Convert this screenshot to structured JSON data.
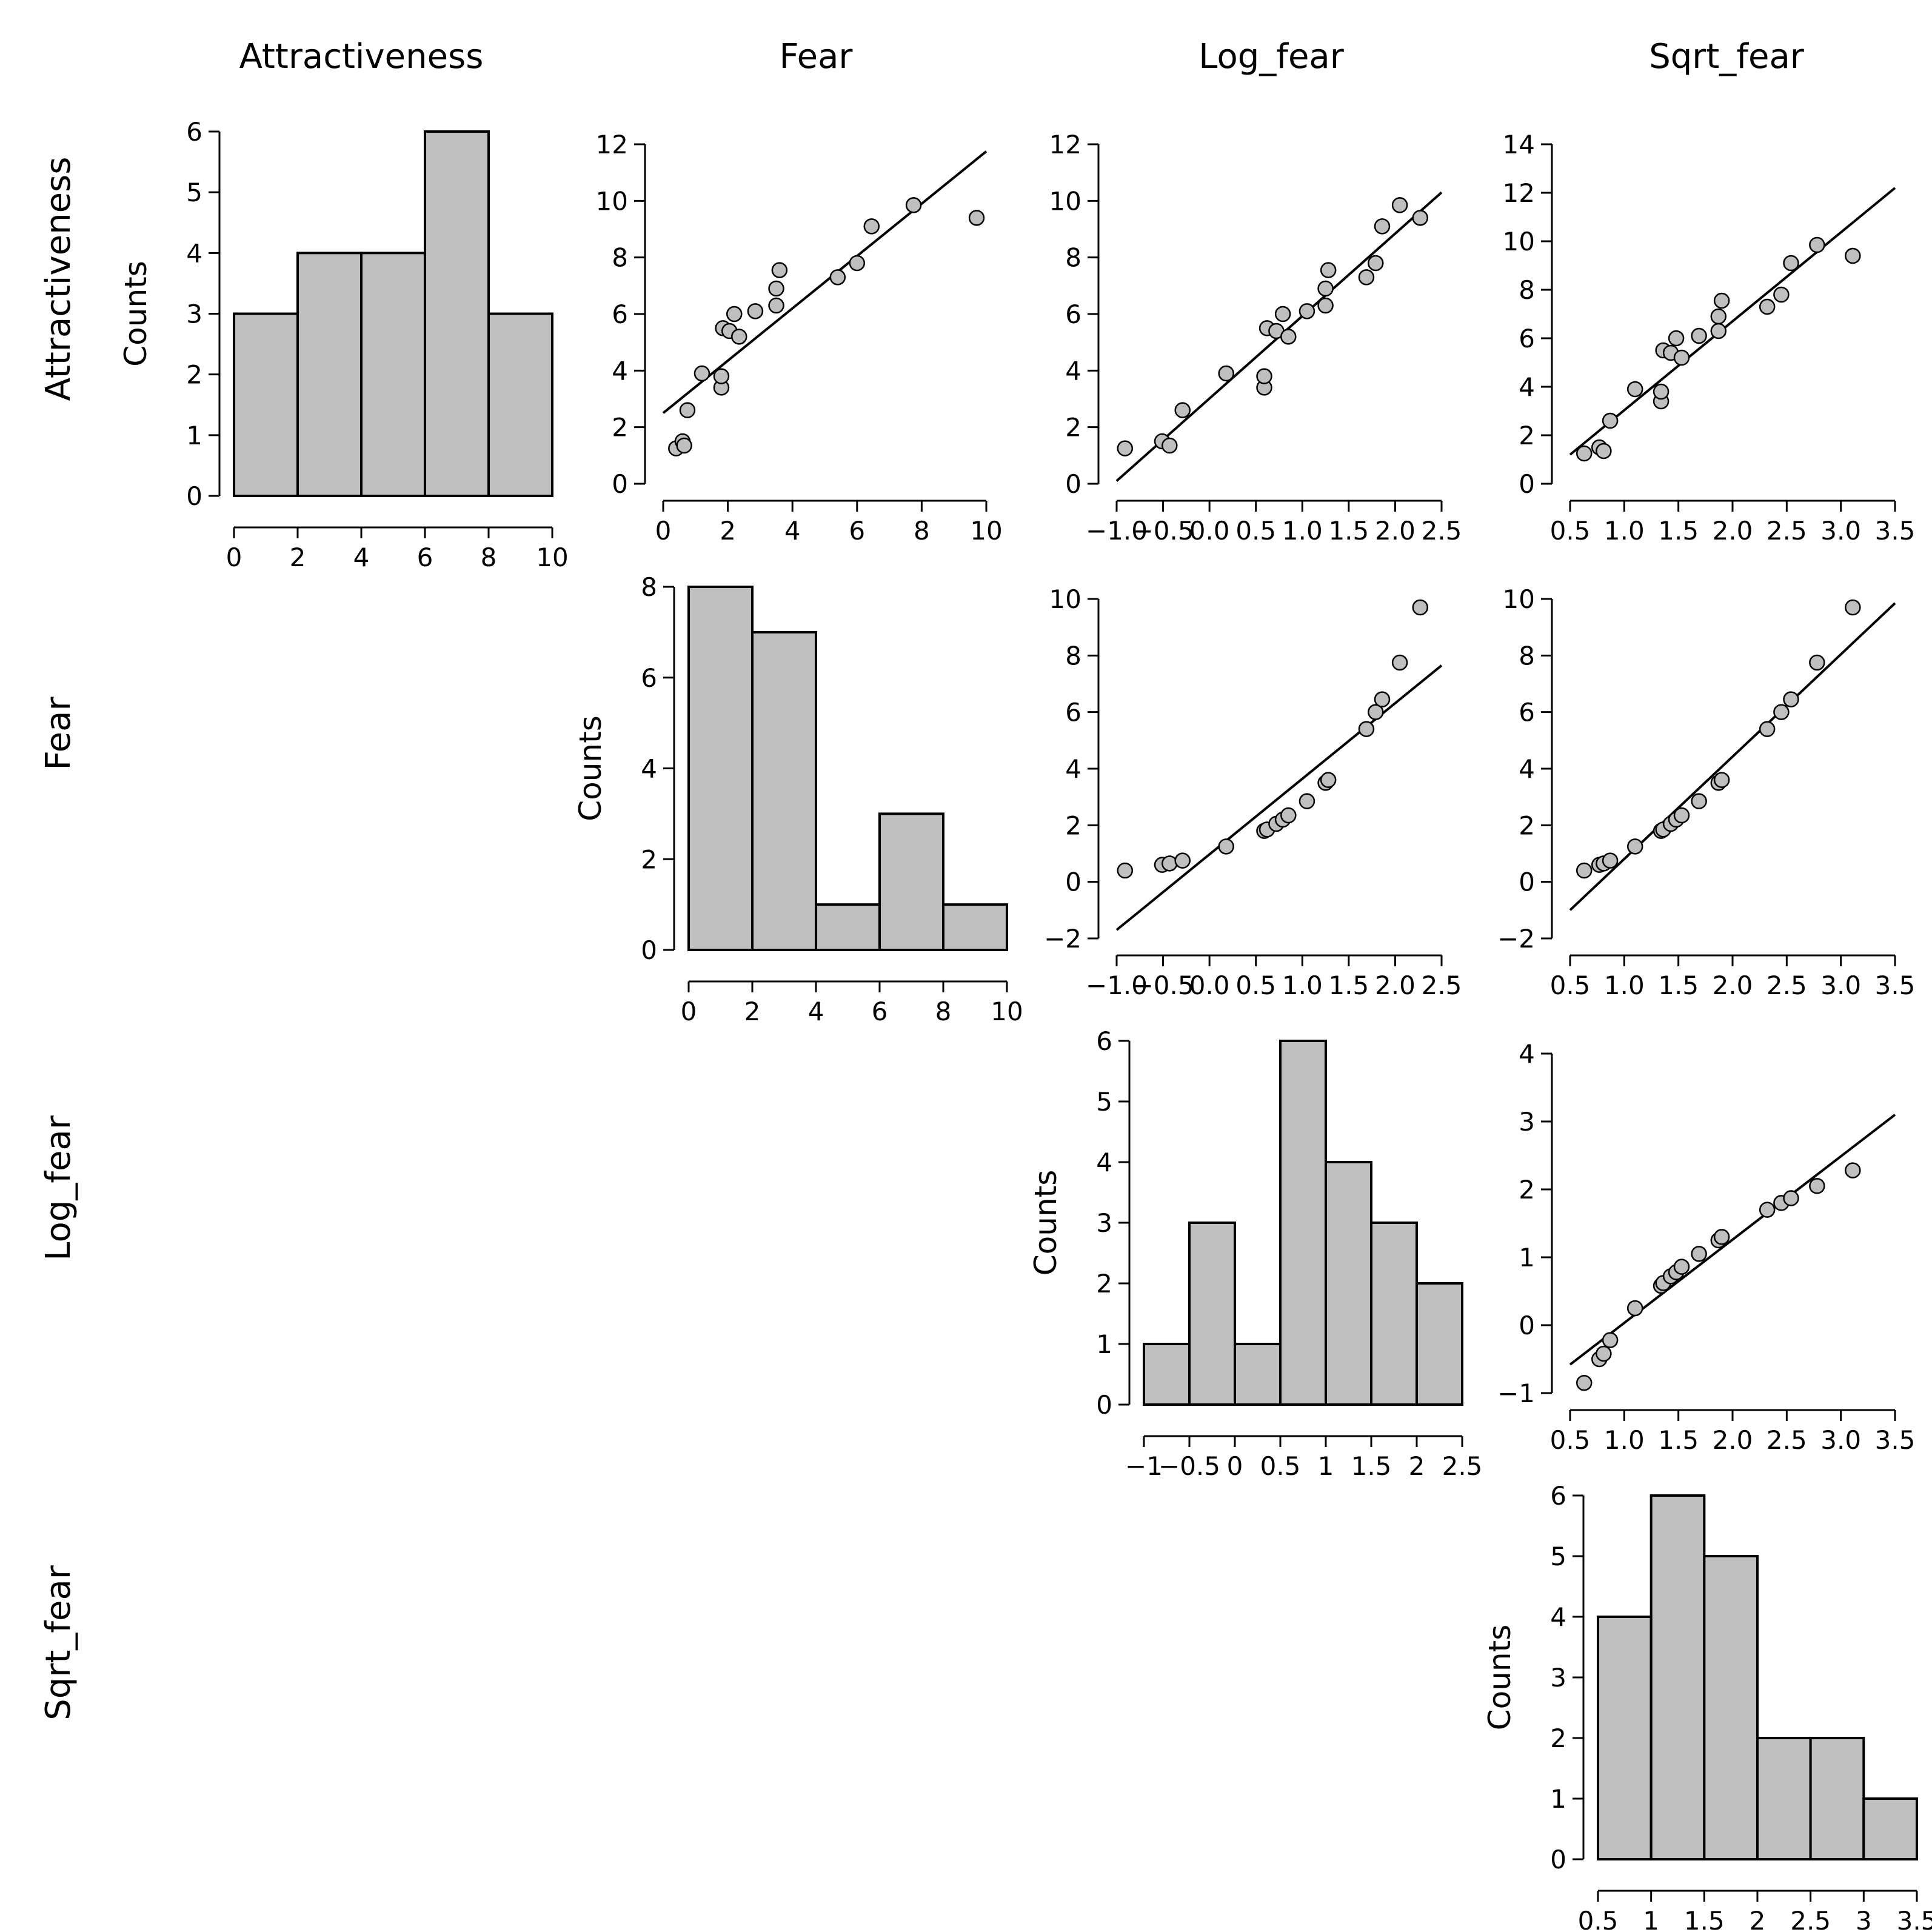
{
  "colors": {
    "bar_fill": "#bfbfbf",
    "point_fill": "#bfbfbf",
    "stroke": "#000000"
  },
  "columns": [
    "Attractiveness",
    "Fear",
    "Log_fear",
    "Sqrt_fear"
  ],
  "rows": [
    "Attractiveness",
    "Fear",
    "Log_fear",
    "Sqrt_fear"
  ],
  "chart_data": [
    {
      "type": "bar",
      "panel": "hist-attractiveness",
      "ylabel": "Counts",
      "bins": [
        [
          0,
          2
        ],
        [
          2,
          4
        ],
        [
          4,
          6
        ],
        [
          6,
          8
        ],
        [
          8,
          10
        ]
      ],
      "counts": [
        3,
        4,
        4,
        6,
        3
      ],
      "xlim": [
        0,
        10
      ],
      "ylim": [
        0,
        6
      ],
      "xticks": [
        0,
        2,
        4,
        6,
        8,
        10
      ],
      "xtick_labels": [
        "0",
        "2",
        "4",
        "6",
        "8",
        "10"
      ],
      "yticks": [
        0,
        1,
        2,
        3,
        4,
        5,
        6
      ],
      "ytick_labels": [
        "0",
        "1",
        "2",
        "3",
        "4",
        "5",
        "6"
      ]
    },
    {
      "type": "scatter",
      "panel": "scatter-fear-attractiveness",
      "points": [
        [
          0.4,
          1.25
        ],
        [
          0.6,
          1.5
        ],
        [
          0.65,
          1.35
        ],
        [
          0.75,
          2.6
        ],
        [
          1.2,
          3.9
        ],
        [
          1.8,
          3.4
        ],
        [
          1.8,
          3.8
        ],
        [
          1.85,
          5.5
        ],
        [
          2.05,
          5.4
        ],
        [
          2.2,
          6.0
        ],
        [
          2.35,
          5.2
        ],
        [
          2.85,
          6.1
        ],
        [
          3.5,
          6.9
        ],
        [
          3.5,
          6.3
        ],
        [
          3.6,
          7.55
        ],
        [
          5.4,
          7.3
        ],
        [
          6.0,
          7.8
        ],
        [
          6.45,
          9.1
        ],
        [
          7.75,
          9.85
        ],
        [
          9.7,
          9.4
        ]
      ],
      "fit": [
        [
          0,
          2.5
        ],
        [
          10,
          11.75
        ]
      ],
      "xlim": [
        0,
        10
      ],
      "ylim": [
        0,
        12
      ],
      "xticks": [
        0,
        2,
        4,
        6,
        8,
        10
      ],
      "xtick_labels": [
        "0",
        "2",
        "4",
        "6",
        "8",
        "10"
      ],
      "yticks": [
        0,
        2,
        4,
        6,
        8,
        10,
        12
      ],
      "ytick_labels": [
        "0",
        "2",
        "4",
        "6",
        "8",
        "10",
        "12"
      ]
    },
    {
      "type": "scatter",
      "panel": "scatter-logfear-attractiveness",
      "points": [
        [
          -0.91,
          1.25
        ],
        [
          -0.51,
          1.5
        ],
        [
          -0.43,
          1.35
        ],
        [
          -0.29,
          2.6
        ],
        [
          0.18,
          3.9
        ],
        [
          0.59,
          3.4
        ],
        [
          0.59,
          3.8
        ],
        [
          0.62,
          5.5
        ],
        [
          0.72,
          5.4
        ],
        [
          0.79,
          6.0
        ],
        [
          0.85,
          5.2
        ],
        [
          1.05,
          6.1
        ],
        [
          1.25,
          6.9
        ],
        [
          1.25,
          6.3
        ],
        [
          1.28,
          7.55
        ],
        [
          1.69,
          7.3
        ],
        [
          1.79,
          7.8
        ],
        [
          1.86,
          9.1
        ],
        [
          2.05,
          9.85
        ],
        [
          2.27,
          9.4
        ]
      ],
      "fit": [
        [
          -1.0,
          0.1
        ],
        [
          2.5,
          10.3
        ]
      ],
      "xlim": [
        -1.0,
        2.5
      ],
      "ylim": [
        0,
        12
      ],
      "xticks": [
        -1.0,
        -0.5,
        0.0,
        0.5,
        1.0,
        1.5,
        2.0,
        2.5
      ],
      "xtick_labels": [
        "−1.0",
        "−0.5",
        "0.0",
        "0.5",
        "1.0",
        "1.5",
        "2.0",
        "2.5"
      ],
      "yticks": [
        0,
        2,
        4,
        6,
        8,
        10,
        12
      ],
      "ytick_labels": [
        "0",
        "2",
        "4",
        "6",
        "8",
        "10",
        "12"
      ]
    },
    {
      "type": "scatter",
      "panel": "scatter-sqrtfear-attractiveness",
      "points": [
        [
          0.63,
          1.25
        ],
        [
          0.77,
          1.5
        ],
        [
          0.81,
          1.35
        ],
        [
          0.87,
          2.6
        ],
        [
          1.1,
          3.9
        ],
        [
          1.34,
          3.4
        ],
        [
          1.34,
          3.8
        ],
        [
          1.36,
          5.5
        ],
        [
          1.43,
          5.4
        ],
        [
          1.48,
          6.0
        ],
        [
          1.53,
          5.2
        ],
        [
          1.69,
          6.1
        ],
        [
          1.87,
          6.9
        ],
        [
          1.87,
          6.3
        ],
        [
          1.9,
          7.55
        ],
        [
          2.32,
          7.3
        ],
        [
          2.45,
          7.8
        ],
        [
          2.54,
          9.1
        ],
        [
          2.78,
          9.85
        ],
        [
          3.11,
          9.4
        ]
      ],
      "fit": [
        [
          0.5,
          1.2
        ],
        [
          3.5,
          12.2
        ]
      ],
      "xlim": [
        0.5,
        3.5
      ],
      "ylim": [
        0,
        14
      ],
      "xticks": [
        0.5,
        1.0,
        1.5,
        2.0,
        2.5,
        3.0,
        3.5
      ],
      "xtick_labels": [
        "0.5",
        "1.0",
        "1.5",
        "2.0",
        "2.5",
        "3.0",
        "3.5"
      ],
      "yticks": [
        0,
        2,
        4,
        6,
        8,
        10,
        12,
        14
      ],
      "ytick_labels": [
        "0",
        "2",
        "4",
        "6",
        "8",
        "10",
        "12",
        "14"
      ]
    },
    {
      "type": "bar",
      "panel": "hist-fear",
      "ylabel": "Counts",
      "bins": [
        [
          0,
          2
        ],
        [
          2,
          4
        ],
        [
          4,
          6
        ],
        [
          6,
          8
        ],
        [
          8,
          10
        ]
      ],
      "counts": [
        8,
        7,
        1,
        3,
        1
      ],
      "xlim": [
        0,
        10
      ],
      "ylim": [
        0,
        8
      ],
      "xticks": [
        0,
        2,
        4,
        6,
        8,
        10
      ],
      "xtick_labels": [
        "0",
        "2",
        "4",
        "6",
        "8",
        "10"
      ],
      "yticks": [
        0,
        2,
        4,
        6,
        8
      ],
      "ytick_labels": [
        "0",
        "2",
        "4",
        "6",
        "8"
      ]
    },
    {
      "type": "scatter",
      "panel": "scatter-logfear-fear",
      "points": [
        [
          -0.91,
          0.4
        ],
        [
          -0.51,
          0.6
        ],
        [
          -0.43,
          0.65
        ],
        [
          -0.29,
          0.75
        ],
        [
          0.18,
          1.25
        ],
        [
          0.59,
          1.8
        ],
        [
          0.62,
          1.85
        ],
        [
          0.72,
          2.05
        ],
        [
          0.79,
          2.2
        ],
        [
          0.85,
          2.35
        ],
        [
          1.05,
          2.85
        ],
        [
          1.25,
          3.5
        ],
        [
          1.28,
          3.6
        ],
        [
          1.69,
          5.4
        ],
        [
          1.79,
          6.0
        ],
        [
          1.86,
          6.45
        ],
        [
          2.05,
          7.75
        ],
        [
          2.27,
          9.7
        ]
      ],
      "fit": [
        [
          -1.0,
          -1.7
        ],
        [
          2.5,
          7.65
        ]
      ],
      "xlim": [
        -1.0,
        2.5
      ],
      "ylim": [
        -2,
        10
      ],
      "xticks": [
        -1.0,
        -0.5,
        0.0,
        0.5,
        1.0,
        1.5,
        2.0,
        2.5
      ],
      "xtick_labels": [
        "−1.0",
        "−0.5",
        "0.0",
        "0.5",
        "1.0",
        "1.5",
        "2.0",
        "2.5"
      ],
      "yticks": [
        -2,
        0,
        2,
        4,
        6,
        8,
        10
      ],
      "ytick_labels": [
        "−2",
        "0",
        "2",
        "4",
        "6",
        "8",
        "10"
      ]
    },
    {
      "type": "scatter",
      "panel": "scatter-sqrtfear-fear",
      "points": [
        [
          0.63,
          0.4
        ],
        [
          0.77,
          0.6
        ],
        [
          0.81,
          0.65
        ],
        [
          0.87,
          0.75
        ],
        [
          1.1,
          1.25
        ],
        [
          1.34,
          1.8
        ],
        [
          1.36,
          1.85
        ],
        [
          1.43,
          2.05
        ],
        [
          1.48,
          2.2
        ],
        [
          1.53,
          2.35
        ],
        [
          1.69,
          2.85
        ],
        [
          1.87,
          3.5
        ],
        [
          1.9,
          3.6
        ],
        [
          2.32,
          5.4
        ],
        [
          2.45,
          6.0
        ],
        [
          2.54,
          6.45
        ],
        [
          2.78,
          7.75
        ],
        [
          3.11,
          9.7
        ]
      ],
      "fit": [
        [
          0.5,
          -1.0
        ],
        [
          3.5,
          9.85
        ]
      ],
      "xlim": [
        0.5,
        3.5
      ],
      "ylim": [
        -2,
        10
      ],
      "xticks": [
        0.5,
        1.0,
        1.5,
        2.0,
        2.5,
        3.0,
        3.5
      ],
      "xtick_labels": [
        "0.5",
        "1.0",
        "1.5",
        "2.0",
        "2.5",
        "3.0",
        "3.5"
      ],
      "yticks": [
        -2,
        0,
        2,
        4,
        6,
        8,
        10
      ],
      "ytick_labels": [
        "−2",
        "0",
        "2",
        "4",
        "6",
        "8",
        "10"
      ]
    },
    {
      "type": "bar",
      "panel": "hist-log-fear",
      "ylabel": "Counts",
      "bins": [
        [
          -1,
          -0.5
        ],
        [
          -0.5,
          0
        ],
        [
          0,
          0.5
        ],
        [
          0.5,
          1
        ],
        [
          1,
          1.5
        ],
        [
          1.5,
          2
        ],
        [
          2,
          2.5
        ]
      ],
      "counts": [
        1,
        3,
        1,
        6,
        4,
        3,
        2
      ],
      "xlim": [
        -1,
        2.5
      ],
      "ylim": [
        0,
        6
      ],
      "xticks": [
        -1,
        -0.5,
        0,
        0.5,
        1,
        1.5,
        2,
        2.5
      ],
      "xtick_labels": [
        "−1",
        "−0.5",
        "0",
        "0.5",
        "1",
        "1.5",
        "2",
        "2.5"
      ],
      "yticks": [
        0,
        1,
        2,
        3,
        4,
        5,
        6
      ],
      "ytick_labels": [
        "0",
        "1",
        "2",
        "3",
        "4",
        "5",
        "6"
      ]
    },
    {
      "type": "scatter",
      "panel": "scatter-sqrtfear-logfear",
      "points": [
        [
          0.63,
          -0.85
        ],
        [
          0.77,
          -0.5
        ],
        [
          0.81,
          -0.42
        ],
        [
          0.87,
          -0.22
        ],
        [
          1.1,
          0.25
        ],
        [
          1.34,
          0.58
        ],
        [
          1.36,
          0.62
        ],
        [
          1.43,
          0.72
        ],
        [
          1.48,
          0.78
        ],
        [
          1.53,
          0.86
        ],
        [
          1.69,
          1.05
        ],
        [
          1.87,
          1.25
        ],
        [
          1.9,
          1.3
        ],
        [
          2.32,
          1.7
        ],
        [
          2.45,
          1.8
        ],
        [
          2.54,
          1.87
        ],
        [
          2.78,
          2.05
        ],
        [
          3.11,
          2.28
        ]
      ],
      "fit": [
        [
          0.5,
          -0.58
        ],
        [
          3.5,
          3.1
        ]
      ],
      "xlim": [
        0.5,
        3.5
      ],
      "ylim": [
        -1,
        4
      ],
      "xticks": [
        0.5,
        1.0,
        1.5,
        2.0,
        2.5,
        3.0,
        3.5
      ],
      "xtick_labels": [
        "0.5",
        "1.0",
        "1.5",
        "2.0",
        "2.5",
        "3.0",
        "3.5"
      ],
      "yticks": [
        -1,
        0,
        1,
        2,
        3,
        4
      ],
      "ytick_labels": [
        "−1",
        "0",
        "1",
        "2",
        "3",
        "4"
      ]
    },
    {
      "type": "bar",
      "panel": "hist-sqrt-fear",
      "ylabel": "Counts",
      "bins": [
        [
          0.5,
          1
        ],
        [
          1,
          1.5
        ],
        [
          1.5,
          2
        ],
        [
          2,
          2.5
        ],
        [
          2.5,
          3
        ],
        [
          3,
          3.5
        ]
      ],
      "counts": [
        4,
        6,
        5,
        2,
        2,
        1
      ],
      "xlim": [
        0.5,
        3.5
      ],
      "ylim": [
        0,
        6
      ],
      "xticks": [
        0.5,
        1,
        1.5,
        2,
        2.5,
        3,
        3.5
      ],
      "xtick_labels": [
        "0.5",
        "1",
        "1.5",
        "2",
        "2.5",
        "3",
        "3.5"
      ],
      "yticks": [
        0,
        1,
        2,
        3,
        4,
        5,
        6
      ],
      "ytick_labels": [
        "0",
        "1",
        "2",
        "3",
        "4",
        "5",
        "6"
      ]
    }
  ]
}
